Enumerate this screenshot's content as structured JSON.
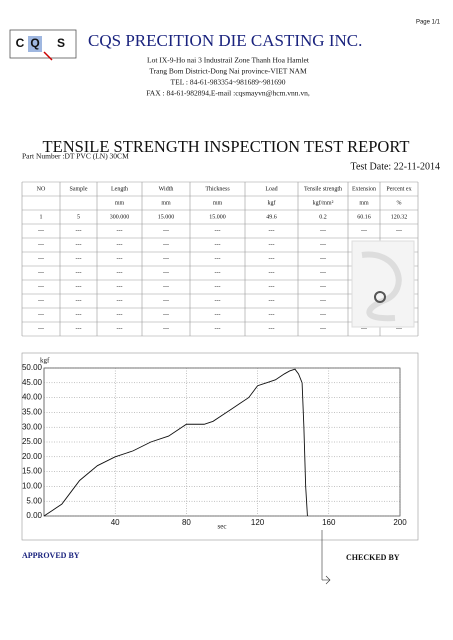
{
  "header": {
    "page": "Page 1/1",
    "logo": [
      "C",
      "Q",
      "S"
    ],
    "company": "CQS PRECITION DIE CASTING INC.",
    "address": [
      "Lot IX-9-Ho nai 3 Industrail Zone Thanh Hoa Hamlet",
      "Trang Bom District-Dong Nai province-VIET NAM",
      "TEL : 84-61-983354~981689~981690",
      "FAX : 84-61-982894,E-mail :cqsmayvn@hcm.vnn.vn,"
    ]
  },
  "title": "TENSILE STRENGTH INSPECTION TEST REPORT",
  "part_number": "Part Number :DT PVC (LN) 30CM",
  "test_date": "Test Date: 22-11-2014",
  "table": {
    "headers": [
      "NO",
      "Sample",
      "Length",
      "Width",
      "Thickness",
      "Load",
      "Tensile strength",
      "Extension",
      "Percent ex"
    ],
    "units": [
      null,
      null,
      "mm",
      "mm",
      "mm",
      "kgf",
      "kgf/mm²",
      "mm",
      "%"
    ],
    "rows": [
      [
        "1",
        "5",
        "300.000",
        "15.000",
        "15.000",
        "49.6",
        "0.2",
        "60.16",
        "120.32"
      ],
      [
        "---",
        "---",
        "---",
        "---",
        "---",
        "---",
        "---",
        "---",
        "---"
      ],
      [
        "---",
        "---",
        "---",
        "---",
        "---",
        "---",
        "---",
        null,
        "---"
      ],
      [
        "---",
        "---",
        "---",
        "---",
        "---",
        "---",
        "---",
        null,
        "---"
      ],
      [
        "---",
        "---",
        "---",
        "---",
        "---",
        "---",
        "---",
        null,
        "---"
      ],
      [
        "---",
        "---",
        "---",
        "---",
        "---",
        "---",
        "---",
        null,
        "---"
      ],
      [
        "---",
        "---",
        "---",
        "---",
        "---",
        "---",
        "---",
        null,
        "---"
      ],
      [
        "---",
        "---",
        "---",
        "---",
        "---",
        "---",
        "---",
        null,
        "---"
      ],
      [
        "---",
        "---",
        "---",
        "---",
        "---",
        "---",
        "---",
        "---",
        "---"
      ]
    ]
  },
  "chart_data": {
    "type": "line",
    "y_label": "kgf",
    "x_label": "sec",
    "x": [
      0,
      5,
      10,
      15,
      20,
      30,
      40,
      50,
      60,
      70,
      80,
      90,
      95,
      100,
      105,
      110,
      115,
      120,
      125,
      130,
      135,
      138,
      141,
      143,
      145,
      146,
      147,
      148
    ],
    "series": [
      {
        "name": "Load",
        "color": "#111111",
        "values": [
          0,
          2,
          4,
          8,
          12,
          17,
          20,
          22,
          25,
          27,
          31,
          31,
          32,
          34,
          36,
          38,
          40,
          44,
          45,
          46,
          48,
          49,
          49.6,
          48,
          45,
          30,
          10,
          0
        ]
      }
    ],
    "xlim": [
      0,
      200
    ],
    "ylim": [
      0,
      50
    ],
    "xticks": [
      40,
      80,
      120,
      160,
      200
    ],
    "yticks": [
      {
        "value": 0,
        "label": "0.00"
      },
      {
        "value": 5,
        "label": "5.00"
      },
      {
        "value": 10,
        "label": "10.00"
      },
      {
        "value": 15,
        "label": "15.00"
      },
      {
        "value": 20,
        "label": "20.00"
      },
      {
        "value": 25,
        "label": "25.00"
      },
      {
        "value": 30,
        "label": "30.00"
      },
      {
        "value": 35,
        "label": "35.00"
      },
      {
        "value": 40,
        "label": "40.00"
      },
      {
        "value": 45,
        "label": "45.00"
      },
      {
        "value": 50,
        "label": "50.00"
      }
    ],
    "grid": true
  },
  "approved_by": "APPROVED BY",
  "checked_by": "CHECKED BY"
}
